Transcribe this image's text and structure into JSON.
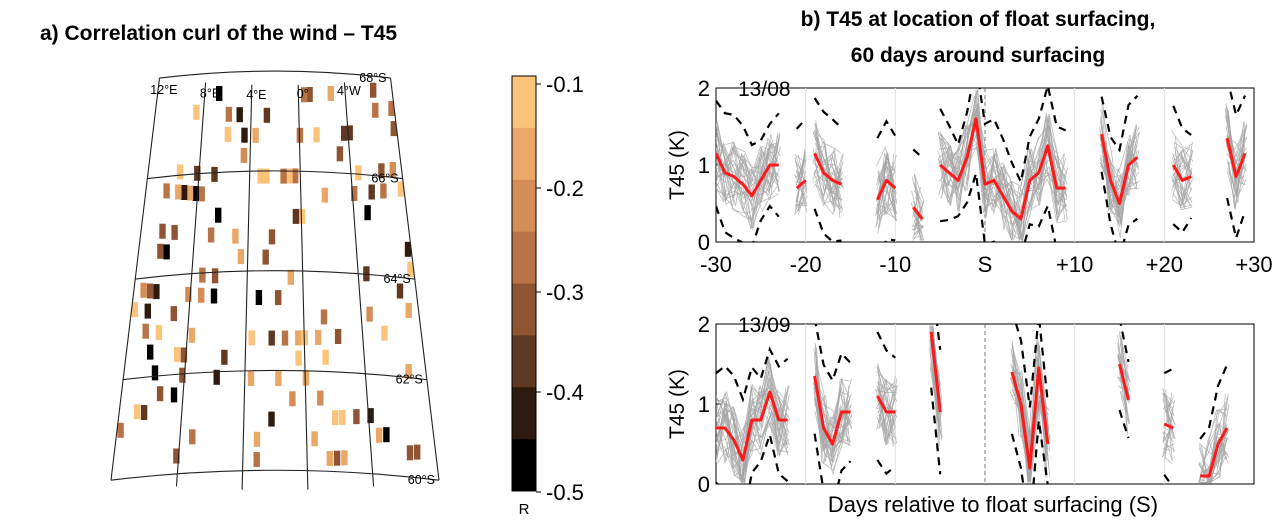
{
  "panel_a": {
    "title": "a) Correlation curl of the wind – T45",
    "lat_labels": [
      "60°S",
      "62°S",
      "64°S",
      "66°S",
      "68°S"
    ],
    "lon_labels": [
      "4°W",
      "0°",
      "4°E",
      "8°E",
      "12°E"
    ],
    "colorbar_ticks": [
      "-0.1",
      "-0.2",
      "-0.3",
      "-0.4",
      "-0.5"
    ],
    "colorbar_label": "R",
    "colors": [
      "#fcc37a",
      "#e9a868",
      "#d58d58",
      "#b87347",
      "#8f5432",
      "#5e3820",
      "#2e1a0e",
      "#000000"
    ]
  },
  "panel_b": {
    "title_line1": "b) T45 at location of float surfacing,",
    "title_line2": "60 days around surfacing",
    "shared_xtick_labels": [
      "-30",
      "-20",
      "-10",
      "S",
      "+10",
      "+20",
      "+30"
    ],
    "xlabel": "Days relative to float surfacing (S)",
    "colors": {
      "mean": "#ff1a1a",
      "bounds": "#000000",
      "members": "#a6a6a6"
    }
  },
  "chart_data": [
    {
      "type": "heatmap",
      "title": "a) Correlation curl of the wind – T45",
      "x_axis_labels": [
        "4°W",
        "0°",
        "4°E",
        "8°E",
        "12°E"
      ],
      "y_axis_labels": [
        "60°S",
        "62°S",
        "64°S",
        "66°S",
        "68°S"
      ],
      "colorbar_label": "R",
      "colorbar_range": [
        -0.5,
        -0.1
      ],
      "note_values": "sparse cells with correlation between -0.5 and -0.1"
    },
    {
      "type": "line",
      "panel": "13/08",
      "ylabel": "T45 (K)",
      "ylim": [
        0,
        2
      ],
      "xlim": [
        -30,
        30
      ],
      "yticks": [
        "0",
        "1",
        "2"
      ],
      "series": [
        {
          "segments": [
            [
              [
                -30,
                1.15
              ],
              [
                -29,
                0.9
              ],
              [
                -28,
                0.85
              ],
              [
                -27,
                0.75
              ],
              [
                -26,
                0.6
              ],
              [
                -25,
                0.8
              ],
              [
                -24,
                1.0
              ],
              [
                -23,
                1.0
              ]
            ],
            [
              [
                -21,
                0.7
              ],
              [
                -20,
                0.8
              ]
            ],
            [
              [
                -19,
                1.15
              ],
              [
                -18,
                0.9
              ],
              [
                -17,
                0.8
              ],
              [
                -16,
                0.75
              ]
            ],
            [
              [
                -12,
                0.55
              ],
              [
                -11,
                0.8
              ],
              [
                -10,
                0.7
              ]
            ],
            [
              [
                -8,
                0.45
              ],
              [
                -7,
                0.3
              ]
            ],
            [
              [
                -5,
                1.0
              ],
              [
                -4,
                0.9
              ],
              [
                -3,
                0.8
              ],
              [
                -2,
                1.1
              ],
              [
                -1,
                1.6
              ],
              [
                0,
                0.75
              ],
              [
                1,
                0.8
              ],
              [
                2,
                0.6
              ],
              [
                3,
                0.4
              ],
              [
                4,
                0.3
              ],
              [
                5,
                0.8
              ],
              [
                6,
                0.9
              ],
              [
                7,
                1.25
              ],
              [
                8,
                0.7
              ],
              [
                9,
                0.7
              ]
            ],
            [
              [
                13,
                1.4
              ],
              [
                14,
                0.8
              ],
              [
                15,
                0.5
              ],
              [
                16,
                1.0
              ],
              [
                17,
                1.1
              ]
            ],
            [
              [
                21,
                1.0
              ],
              [
                22,
                0.8
              ],
              [
                23,
                0.85
              ]
            ],
            [
              [
                27,
                1.35
              ],
              [
                28,
                0.85
              ],
              [
                29,
                1.15
              ]
            ]
          ]
        }
      ]
    },
    {
      "type": "line",
      "panel": "13/09",
      "ylabel": "T45 (K)",
      "ylim": [
        0,
        2
      ],
      "xlim": [
        -30,
        30
      ],
      "yticks": [
        "0",
        "1",
        "2"
      ],
      "series": [
        {
          "segments": [
            [
              [
                -30,
                0.7
              ],
              [
                -29,
                0.7
              ],
              [
                -28,
                0.55
              ],
              [
                -27,
                0.3
              ],
              [
                -26,
                0.8
              ],
              [
                -25,
                0.8
              ],
              [
                -24,
                1.15
              ],
              [
                -23,
                0.8
              ],
              [
                -22,
                0.8
              ]
            ],
            [
              [
                -19,
                1.35
              ],
              [
                -18,
                0.7
              ],
              [
                -17,
                0.5
              ],
              [
                -16,
                0.9
              ],
              [
                -15,
                0.9
              ]
            ],
            [
              [
                -12,
                1.1
              ],
              [
                -11,
                0.9
              ],
              [
                -10,
                0.9
              ]
            ],
            [
              [
                -6,
                1.9
              ],
              [
                -5,
                0.9
              ]
            ],
            [
              [
                3,
                1.4
              ],
              [
                4,
                1.0
              ],
              [
                5,
                0.2
              ],
              [
                6,
                1.45
              ],
              [
                7,
                0.5
              ]
            ],
            [
              [
                15,
                1.5
              ],
              [
                16,
                1.05
              ]
            ],
            [
              [
                20,
                0.75
              ],
              [
                21,
                0.7
              ]
            ],
            [
              [
                24,
                0.1
              ],
              [
                25,
                0.1
              ],
              [
                26,
                0.5
              ],
              [
                27,
                0.7
              ]
            ]
          ]
        }
      ]
    }
  ]
}
